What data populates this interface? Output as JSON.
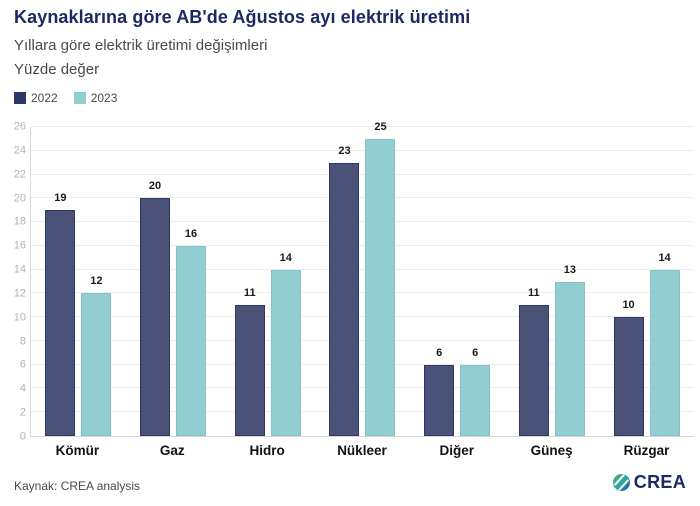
{
  "header": {
    "title": "Kaynaklarına göre AB'de Ağustos ayı elektrik üretimi",
    "subtitle": "Yıllara göre elektrik üretimi değişimleri",
    "unit_label": "Yüzde değer"
  },
  "legend": {
    "items": [
      {
        "label": "2022",
        "color": "#2c3768"
      },
      {
        "label": "2023",
        "color": "#92cdd1"
      }
    ]
  },
  "chart_data": {
    "type": "bar",
    "title": "Kaynaklarına göre AB'de Ağustos ayı elektrik üretimi",
    "subtitle": "Yıllara göre elektrik üretimi değişimleri",
    "unit": "Yüzde değer",
    "categories": [
      "Kömür",
      "Gaz",
      "Hidro",
      "Nükleer",
      "Diğer",
      "Güneş",
      "Rüzgar"
    ],
    "series": [
      {
        "name": "2022",
        "values": [
          19,
          20,
          11,
          23,
          6,
          11,
          10
        ],
        "color": "#4a5278",
        "border_color": "#2c3768"
      },
      {
        "name": "2023",
        "values": [
          12,
          16,
          14,
          25,
          6,
          13,
          14
        ],
        "color": "#92cdd1",
        "border_color": "#82c2c8"
      }
    ],
    "xlabel": "",
    "ylabel": "",
    "ylim": [
      0,
      26
    ],
    "ytick_step": 2,
    "grid": true,
    "legend_position": "top-left",
    "value_labels": true
  },
  "footer": {
    "source": "Kaynak: CREA analysis",
    "logo_text": "CREA"
  },
  "colors": {
    "title": "#1b2a63",
    "subtitle": "#4a4a4a",
    "gridline": "#ececec",
    "tick_label": "#b2b2b2"
  }
}
